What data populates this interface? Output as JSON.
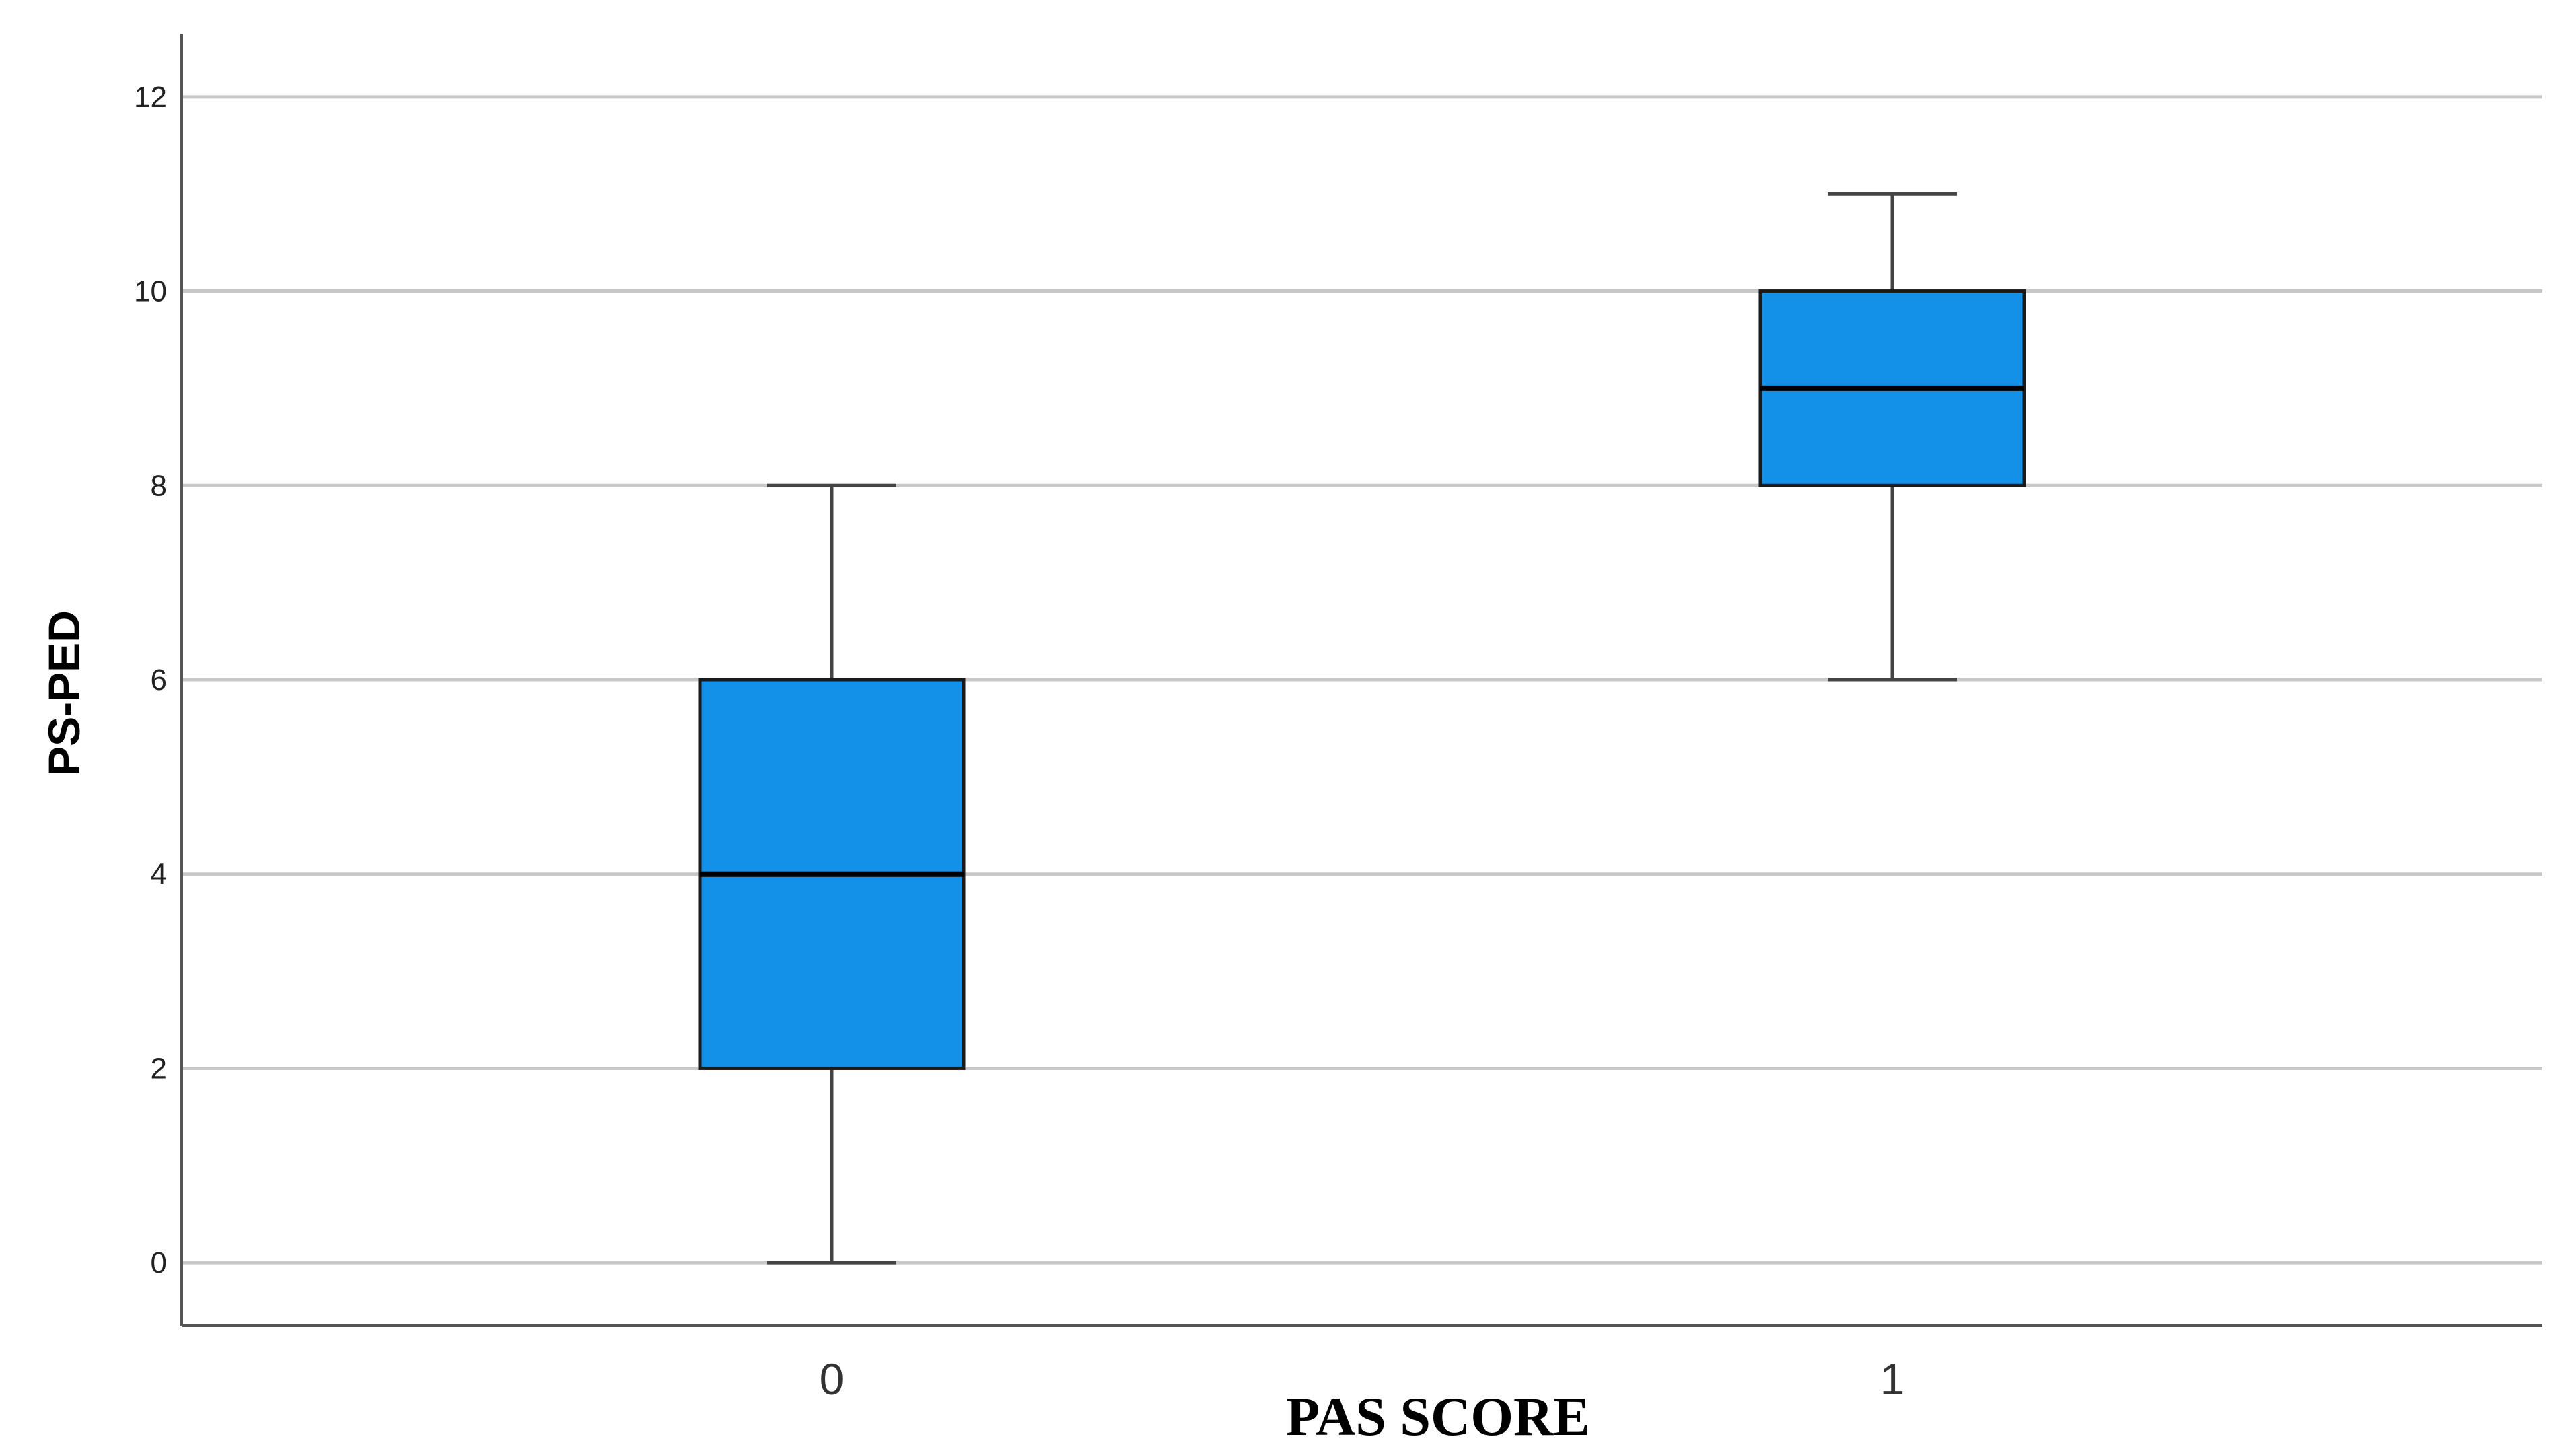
{
  "chart_data": {
    "type": "box",
    "xlabel": "PAS SCORE",
    "ylabel": "PS-PED",
    "ylim": [
      -0.65,
      12.65
    ],
    "y_ticks": [
      0,
      2,
      4,
      6,
      8,
      10,
      12
    ],
    "grid": true,
    "box_color": "#1390E8",
    "categories": [
      "0",
      "1"
    ],
    "boxes": [
      {
        "category": "0",
        "min": 0,
        "q1": 2,
        "median": 4,
        "q3": 6,
        "max": 8
      },
      {
        "category": "1",
        "min": 6,
        "q1": 8,
        "median": 9,
        "q3": 10,
        "max": 11
      }
    ]
  }
}
